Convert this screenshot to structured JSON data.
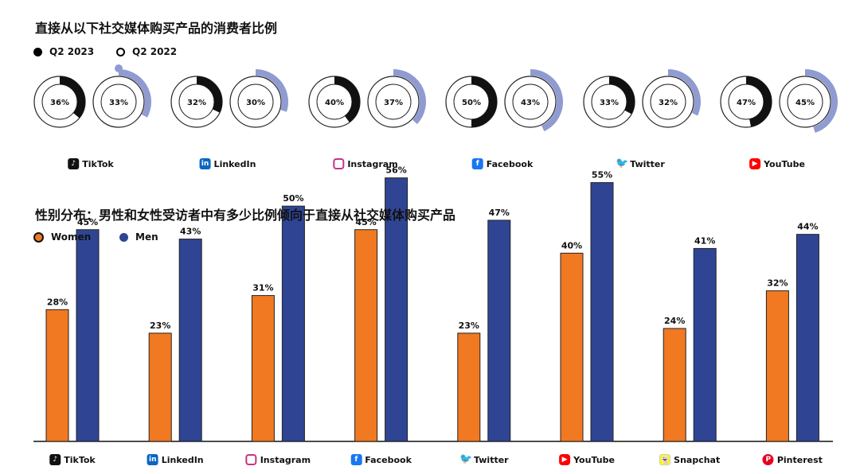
{
  "title_top": "直接从以下社交媒体购买产品的消费者比例",
  "title_bottom": "性别分布：男性和女性受访者中有多少比例倾向于直接从社交媒体购买产品",
  "legend_top": [
    "Q2 2023",
    "Q2 2022"
  ],
  "legend_bottom": [
    "Women",
    "Men"
  ],
  "colors": {
    "q2023": "#111111",
    "q2022_accent": "#8f9bd1",
    "women": "#f07922",
    "men": "#2f4594",
    "axis": "#111111"
  },
  "chart_data": [
    {
      "type": "donut",
      "title": "直接从以下社交媒体购买产品的消费者比例",
      "categories": [
        "TikTok",
        "LinkedIn",
        "Instagram",
        "Facebook",
        "Twitter",
        "YouTube"
      ],
      "series": [
        {
          "name": "Q2 2023",
          "values": [
            36,
            32,
            40,
            50,
            33,
            47
          ],
          "labels": [
            "36%",
            "32%",
            "40%",
            "50%",
            "33%",
            "47%"
          ]
        },
        {
          "name": "Q2 2022",
          "values": [
            33,
            30,
            37,
            43,
            32,
            45
          ],
          "labels": [
            "33%",
            "30%",
            "37%",
            "43%",
            "32%",
            "45%"
          ]
        }
      ],
      "unit": "%"
    },
    {
      "type": "bar",
      "title": "性别分布：男性和女性受访者中有多少比例倾向于直接从社交媒体购买产品",
      "categories": [
        "TikTok",
        "LinkedIn",
        "Instagram",
        "Facebook",
        "Twitter",
        "YouTube",
        "Snapchat",
        "Pinterest"
      ],
      "series": [
        {
          "name": "Women",
          "values": [
            28,
            23,
            31,
            45,
            23,
            40,
            24,
            32
          ],
          "labels": [
            "28%",
            "23%",
            "31%",
            "45%",
            "23%",
            "40%",
            "24%",
            "32%"
          ]
        },
        {
          "name": "Men",
          "values": [
            45,
            43,
            50,
            56,
            47,
            55,
            41,
            44
          ],
          "labels": [
            "45%",
            "43%",
            "50%",
            "56%",
            "47%",
            "55%",
            "41%",
            "44%"
          ]
        }
      ],
      "xlabel": "",
      "ylabel": "",
      "ylim": [
        0,
        60
      ],
      "grid": false,
      "legend": "top-left"
    }
  ],
  "platform_icons": {
    "TikTok": "tiktok-icon",
    "LinkedIn": "linkedin-icon",
    "Instagram": "instagram-icon",
    "Facebook": "facebook-icon",
    "Twitter": "twitter-icon",
    "YouTube": "youtube-icon",
    "Snapchat": "snapchat-icon",
    "Pinterest": "pinterest-icon"
  }
}
